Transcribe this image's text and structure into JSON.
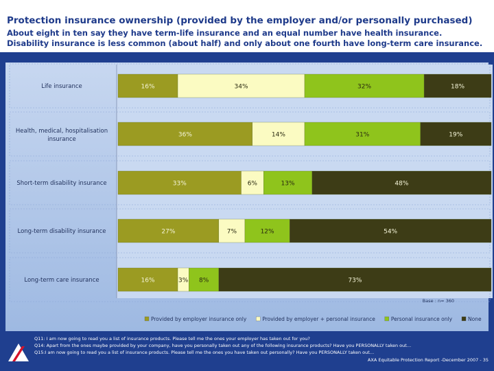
{
  "title": "Protection insurance ownership (provided by the employer and/or personally purchased)",
  "subtitle_lines": [
    "About eight in ten say they have term-life insurance and an equal number have health insurance.",
    "Disability insurance is less common (about half) and only about one fourth have long-term care insurance."
  ],
  "chart_data": {
    "type": "bar",
    "orientation": "horizontal",
    "stacked": true,
    "percent_stacked": true,
    "categories": [
      "Life insurance",
      "Health, medical, hospitalisation insurance",
      "Short-term disability insurance",
      "Long-term disability insurance",
      "Long-term care insurance"
    ],
    "series": [
      {
        "name": "Provided by employer insurance only",
        "color": "#9b9b22",
        "values": [
          16,
          36,
          33,
          27,
          16
        ],
        "labels": [
          "16%",
          "36%",
          "33%",
          "27%",
          "16%"
        ]
      },
      {
        "name": "Provided by employer + personal insurance",
        "color": "#fbfbc2",
        "values": [
          34,
          14,
          6,
          7,
          3
        ],
        "labels": [
          "34%",
          "14%",
          "6%",
          "7%",
          "3%"
        ]
      },
      {
        "name": "Personal insurance only",
        "color": "#8fc41c",
        "values": [
          32,
          31,
          13,
          12,
          8
        ],
        "labels": [
          "32%",
          "31%",
          "13%",
          "12%",
          "8%"
        ]
      },
      {
        "name": "None",
        "color": "#3d3c16",
        "values": [
          18,
          19,
          48,
          54,
          73
        ],
        "labels": [
          "18%",
          "19%",
          "48%",
          "54%",
          "73%"
        ]
      }
    ],
    "base_note": "Base : n= 360",
    "legend_position": "bottom"
  },
  "footnotes": [
    "Q11: I am now going to read you a list of insurance products. Please tell me the ones your employer has taken out for you?",
    "Q14: Apart from the ones maybe provided by your company, have you personally taken out any of the following insurance products? Have you PERSONALLY taken out…",
    "Q15:I am now going to read you a list of insurance products. Please tell me the ones you have taken out personally? Have you PERSONALLY taken out…"
  ],
  "report_label": "AXA Equitable Protection Report -December 2007 - 35",
  "logo_text": "AXA"
}
